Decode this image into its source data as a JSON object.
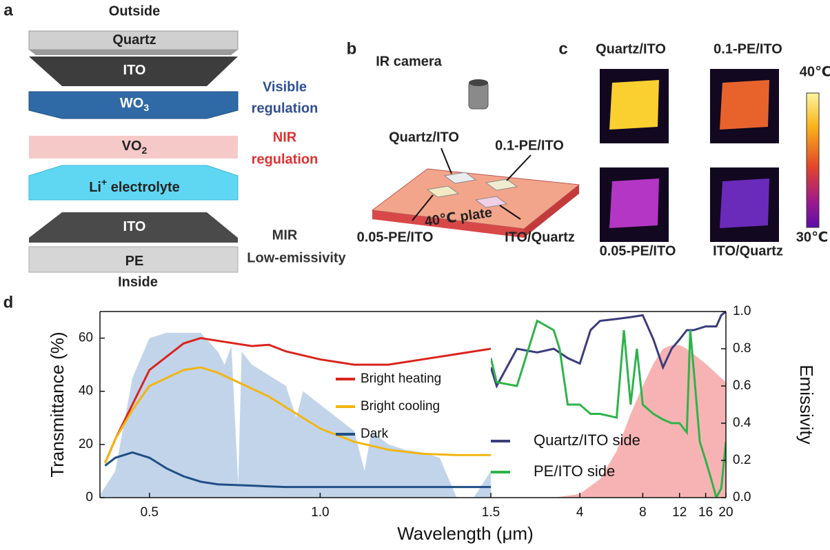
{
  "panel_a": {
    "letter": "a",
    "top": "Outside",
    "bottom": "Inside",
    "layers": [
      {
        "label": "Quartz"
      },
      {
        "label": "ITO"
      },
      {
        "label": "WO",
        "sub": "3"
      },
      {
        "label": "VO",
        "sub": "2"
      },
      {
        "label": "Li",
        "sup": "+",
        "rest": " electrolyte"
      },
      {
        "label": "ITO"
      },
      {
        "label": "PE"
      }
    ],
    "notes": [
      [
        "Visible",
        "regulation"
      ],
      [
        "NIR",
        "regulation"
      ],
      [
        "MIR",
        "Low-emissivity"
      ]
    ]
  },
  "panel_b": {
    "letter": "b",
    "camera": "IR camera",
    "plate": "40℃ plate",
    "samples": [
      "Quartz/ITO",
      "0.1-PE/ITO",
      "0.05-PE/ITO",
      "ITO/Quartz"
    ]
  },
  "panel_c": {
    "letter": "c",
    "images": [
      "Quartz/ITO",
      "0.1-PE/ITO",
      "0.05-PE/ITO",
      "ITO/Quartz"
    ],
    "scale_max": "40℃",
    "scale_min": "30℃"
  },
  "panel_d": {
    "letter": "d",
    "xlabel": "Wavelength (μm)"
  },
  "chart_data": [
    {
      "type": "line",
      "ylabel": "Transmittance (%)",
      "xlim": [
        0.355,
        1.5
      ],
      "ylim": [
        0,
        70
      ],
      "xticks": [
        0.5,
        {
          "value": 1,
          "label": "1.0"
        },
        1.5
      ],
      "yticks": [
        0,
        20,
        40,
        60
      ],
      "legend": "center-right",
      "areas": [
        {
          "color": "#b7cde6",
          "x": [
            0.35,
            0.4,
            0.45,
            0.5,
            0.55,
            0.6,
            0.65,
            0.7,
            0.72,
            0.74,
            0.76,
            0.77,
            0.8,
            0.9,
            0.93,
            0.95,
            1.0,
            1.1,
            1.13,
            1.15,
            1.2,
            1.25,
            1.3,
            1.35,
            1.4,
            1.45,
            1.5
          ],
          "values": [
            0,
            10,
            45,
            60,
            62,
            62,
            62,
            55,
            50,
            57,
            5,
            55,
            50,
            42,
            30,
            40,
            35,
            25,
            10,
            25,
            20,
            18,
            17,
            15,
            0,
            0,
            10
          ]
        }
      ],
      "series": [
        {
          "name": "Bright heating",
          "color": "#d9241d",
          "x": [
            0.37,
            0.4,
            0.45,
            0.5,
            0.55,
            0.6,
            0.65,
            0.7,
            0.8,
            0.85,
            0.9,
            1.0,
            1.1,
            1.2,
            1.3,
            1.4,
            1.5
          ],
          "values": [
            13,
            22,
            35,
            48,
            53,
            58,
            60,
            59,
            57,
            57.5,
            55,
            52,
            50,
            50,
            52,
            54,
            56
          ]
        },
        {
          "name": "Bright cooling",
          "color": "#f2b50f",
          "x": [
            0.37,
            0.4,
            0.45,
            0.5,
            0.55,
            0.6,
            0.65,
            0.7,
            0.8,
            0.85,
            0.9,
            1.0,
            1.1,
            1.2,
            1.3,
            1.4,
            1.5
          ],
          "values": [
            13,
            22,
            33,
            42,
            45,
            48,
            49,
            47,
            41,
            38,
            34,
            26,
            21,
            18,
            16.5,
            16,
            16
          ]
        },
        {
          "name": "Dark",
          "color": "#1f4e85",
          "x": [
            0.37,
            0.4,
            0.45,
            0.5,
            0.55,
            0.6,
            0.65,
            0.7,
            0.8,
            0.85,
            0.9,
            1.0,
            1.1,
            1.2,
            1.3,
            1.4,
            1.5
          ],
          "values": [
            12,
            15,
            17,
            15,
            11,
            8,
            6,
            5,
            4.5,
            4.2,
            4,
            4,
            4,
            4,
            4,
            4,
            4
          ]
        }
      ]
    },
    {
      "type": "line",
      "ylabel": "Emissivity",
      "x_scale": "log",
      "xlim": [
        1.5,
        20
      ],
      "ylim": [
        0,
        1
      ],
      "xticks": [
        4,
        8,
        12,
        16,
        20
      ],
      "yticks": [
        {
          "value": 0,
          "label": "0.0"
        },
        0.2,
        0.4,
        0.6,
        0.8,
        {
          "value": 1,
          "label": "1.0"
        }
      ],
      "legend": "lower-left",
      "areas": [
        {
          "color": "#f6a6a6",
          "x": [
            3,
            4,
            5,
            6,
            7,
            8,
            9,
            10,
            11,
            12,
            13,
            16,
            20
          ],
          "values": [
            0,
            0.02,
            0.1,
            0.25,
            0.45,
            0.6,
            0.72,
            0.8,
            0.82,
            0.82,
            0.8,
            0.72,
            0.62
          ]
        }
      ],
      "series": [
        {
          "name": "Quartz/ITO side",
          "color": "#3a3d7c",
          "x": [
            1.5,
            1.6,
            2,
            2.5,
            3,
            3.5,
            4,
            4.5,
            5,
            6,
            7,
            8,
            9,
            10,
            11,
            12,
            13,
            14,
            16,
            18,
            19,
            20
          ],
          "values": [
            0.7,
            0.6,
            0.8,
            0.78,
            0.8,
            0.75,
            0.72,
            0.9,
            0.95,
            0.96,
            0.97,
            0.98,
            0.85,
            0.7,
            0.8,
            0.85,
            0.9,
            0.9,
            0.92,
            0.92,
            0.98,
            1.0
          ]
        },
        {
          "name": "PE/ITO side",
          "color": "#2db34a",
          "x": [
            1.5,
            1.6,
            2,
            2.5,
            3,
            3.2,
            3.5,
            4,
            4.5,
            5,
            6,
            6.5,
            7,
            7.5,
            8,
            9,
            10,
            11,
            12,
            13,
            13.5,
            14,
            15,
            16,
            17,
            18,
            19,
            20
          ],
          "values": [
            0.75,
            0.62,
            0.6,
            0.95,
            0.9,
            0.8,
            0.5,
            0.5,
            0.45,
            0.45,
            0.43,
            0.9,
            0.5,
            0.8,
            0.5,
            0.45,
            0.42,
            0.4,
            0.4,
            0.35,
            0.9,
            0.7,
            0.3,
            0.2,
            0.1,
            0,
            0.05,
            0.3
          ]
        }
      ]
    }
  ]
}
